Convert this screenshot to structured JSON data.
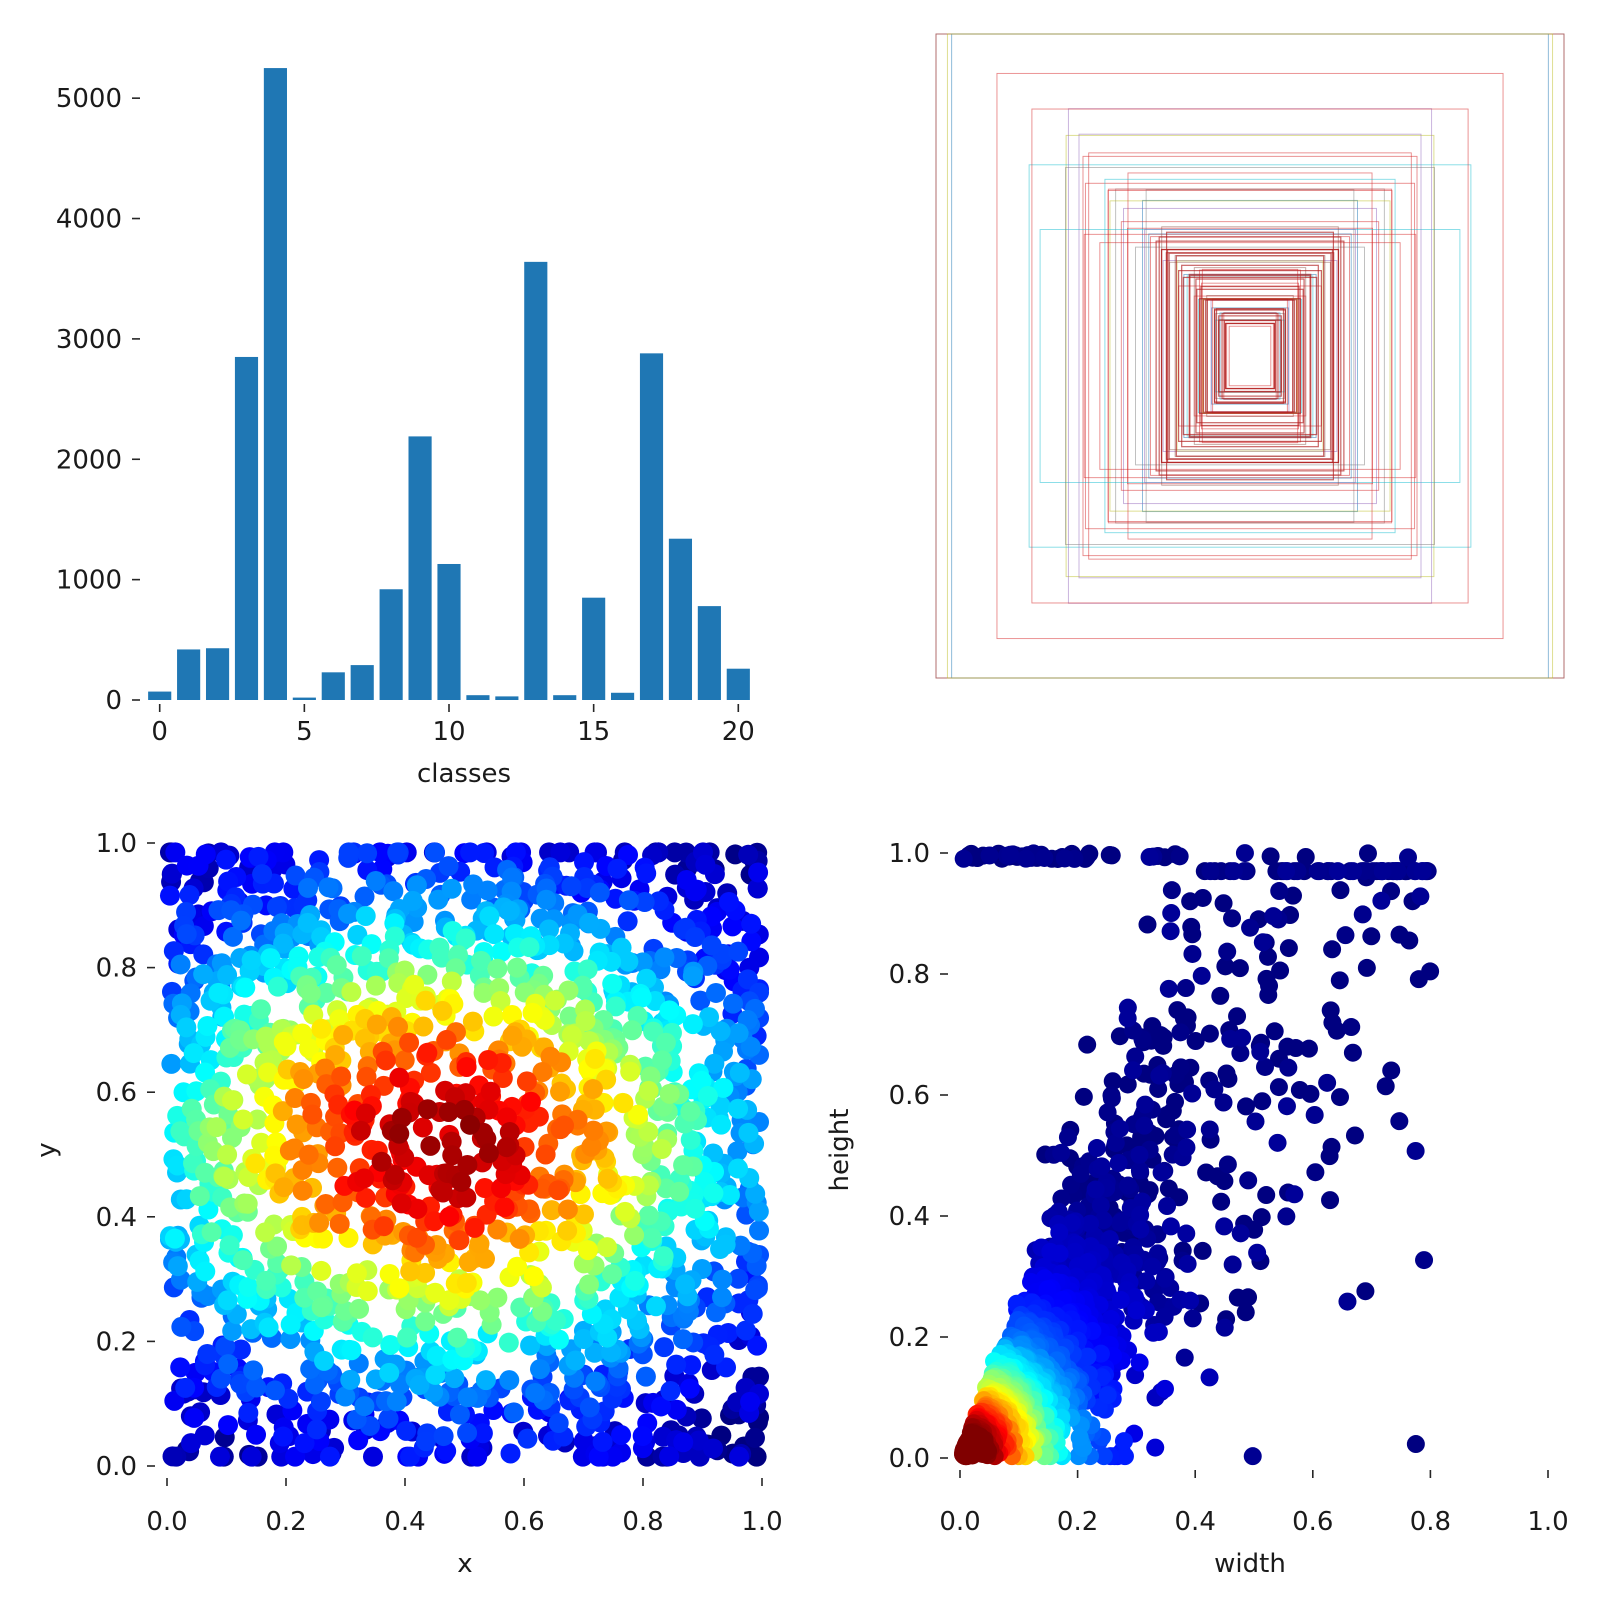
{
  "chart_data": [
    {
      "type": "bar",
      "name": "class-histogram",
      "xlabel": "classes",
      "ylabel": "",
      "xlim": [
        -0.75,
        20.75
      ],
      "ylim": [
        0,
        5450
      ],
      "xticks": [
        0,
        5,
        10,
        15,
        20
      ],
      "yticks": [
        0,
        1000,
        2000,
        3000,
        4000,
        5000
      ],
      "categories": [
        0,
        1,
        2,
        3,
        4,
        5,
        6,
        7,
        8,
        9,
        10,
        11,
        12,
        13,
        14,
        15,
        16,
        17,
        18,
        19,
        20
      ],
      "values": [
        70,
        420,
        430,
        2850,
        5250,
        20,
        230,
        290,
        920,
        2190,
        1130,
        40,
        30,
        3640,
        40,
        850,
        60,
        2880,
        1340,
        780,
        260
      ],
      "color": "#1f77b4"
    },
    {
      "type": "rectangles",
      "name": "box-shapes",
      "description_units": "normalized box width/height centred at 0.5",
      "count_drawn": 60
    },
    {
      "type": "scatter",
      "name": "box-centres",
      "xlabel": "x",
      "ylabel": "y",
      "xlim": [
        0.0,
        1.0
      ],
      "ylim": [
        0.0,
        1.0
      ],
      "xticks": [
        "0.0",
        "0.2",
        "0.4",
        "0.6",
        "0.8",
        "1.0"
      ],
      "yticks": [
        "0.0",
        "0.2",
        "0.4",
        "0.6",
        "0.8",
        "1.0"
      ],
      "colormap": "jet",
      "points": 1800
    },
    {
      "type": "scatter",
      "name": "box-sizes",
      "xlabel": "width",
      "ylabel": "height",
      "xlim": [
        0.0,
        1.0
      ],
      "ylim": [
        0.0,
        1.0
      ],
      "xticks": [
        "0.0",
        "0.2",
        "0.4",
        "0.6",
        "0.8",
        "1.0"
      ],
      "yticks": [
        "0.0",
        "0.2",
        "0.4",
        "0.6",
        "0.8",
        "1.0"
      ],
      "colormap": "jet",
      "points": 1800
    }
  ]
}
